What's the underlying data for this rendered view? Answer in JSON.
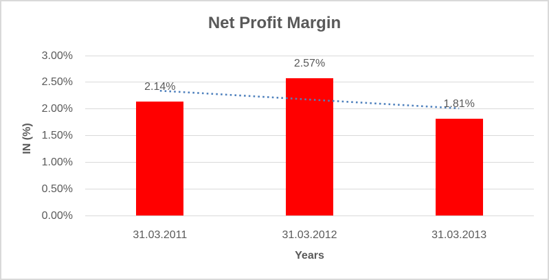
{
  "chart_data": {
    "type": "bar",
    "title": "Net Profit Margin",
    "xlabel": "Years",
    "ylabel": "IN (%)",
    "categories": [
      "31.03.2011",
      "31.03.2012",
      "31.03.2013"
    ],
    "values": [
      2.14,
      2.57,
      1.81
    ],
    "data_labels": [
      "2.14%",
      "2.57%",
      "1.81%"
    ],
    "yticks": [
      "3.00%",
      "2.50%",
      "2.00%",
      "1.50%",
      "1.00%",
      "0.50%",
      "0.00%"
    ],
    "ylim": [
      0,
      3
    ],
    "ytick_step": 0.5,
    "grid": true,
    "legend": "none",
    "bar_color": "#ff0000",
    "grid_color": "#d9d9d9",
    "text_color": "#595959",
    "frame_color": "#d9d9d9",
    "trendline": {
      "type": "linear",
      "style": "dotted",
      "color": "#4f81bd",
      "start_value": 2.34,
      "end_value": 2.01
    }
  }
}
